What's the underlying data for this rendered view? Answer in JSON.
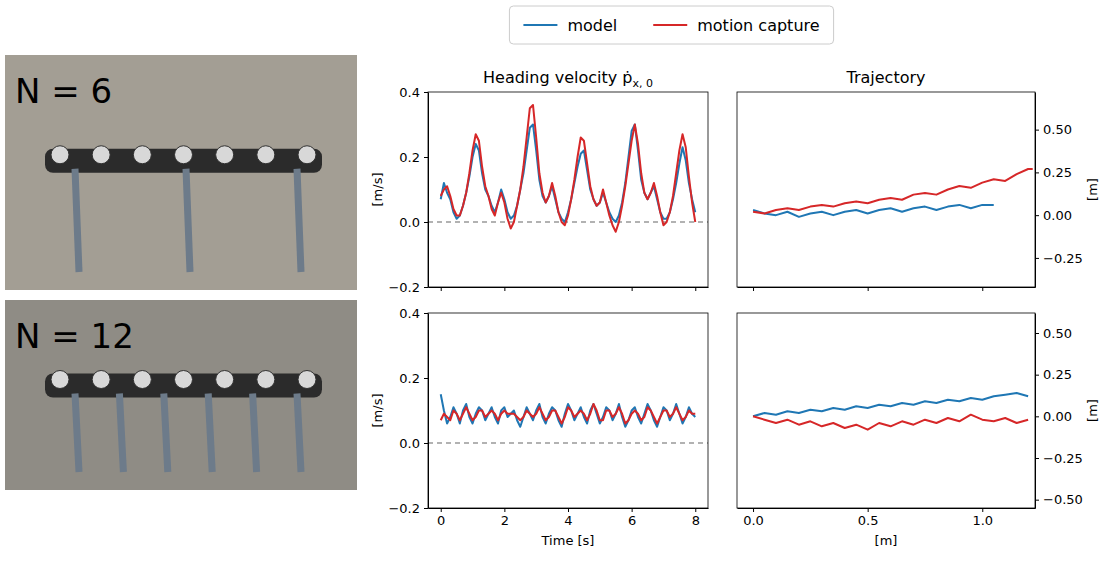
{
  "photos": [
    {
      "label": "N = 6"
    },
    {
      "label": "N = 12"
    }
  ],
  "chart_data": [
    {
      "type": "line",
      "title": "Heading velocity ṗ",
      "title_subscript": "x, 0",
      "y_label": "[m/s]",
      "legend": "upper center",
      "tick_labels": "y",
      "x": [
        0,
        0.1,
        0.2,
        0.3,
        0.4,
        0.5,
        0.6,
        0.7,
        0.8,
        0.9,
        1,
        1.1,
        1.2,
        1.3,
        1.4,
        1.5,
        1.6,
        1.7,
        1.8,
        1.9,
        2,
        2.1,
        2.2,
        2.3,
        2.4,
        2.5,
        2.6,
        2.7,
        2.8,
        2.9,
        3,
        3.1,
        3.2,
        3.3,
        3.4,
        3.5,
        3.6,
        3.7,
        3.8,
        3.9,
        4,
        4.1,
        4.2,
        4.3,
        4.4,
        4.5,
        4.6,
        4.7,
        4.8,
        4.9,
        5,
        5.1,
        5.2,
        5.3,
        5.4,
        5.5,
        5.6,
        5.7,
        5.8,
        5.9,
        6,
        6.1,
        6.2,
        6.3,
        6.4,
        6.5,
        6.6,
        6.7,
        6.8,
        6.9,
        7,
        7.1,
        7.2,
        7.3,
        7.4,
        7.5,
        7.6,
        7.7,
        7.8,
        7.9,
        8
      ],
      "xlim": [
        -0.4,
        8.4
      ],
      "xticks": [
        0,
        2,
        4,
        6,
        8
      ],
      "ylim": [
        -0.2,
        0.4
      ],
      "yticks": [
        {
          "value": -0.2,
          "label": "−0.2"
        },
        {
          "value": 0,
          "label": "0.0"
        },
        0.2,
        0.4
      ],
      "hlines": [
        0
      ],
      "series": [
        {
          "name": "model",
          "color": "#1f77b4",
          "values": [
            0.07,
            0.12,
            0.09,
            0.07,
            0.03,
            0.01,
            0.02,
            0.05,
            0.09,
            0.14,
            0.2,
            0.24,
            0.22,
            0.15,
            0.1,
            0.08,
            0.05,
            0.03,
            0.06,
            0.1,
            0.07,
            0.03,
            0.01,
            0.02,
            0.05,
            0.1,
            0.15,
            0.22,
            0.29,
            0.3,
            0.22,
            0.13,
            0.08,
            0.06,
            0.08,
            0.11,
            0.07,
            0.03,
            0.01,
            0.0,
            0.03,
            0.07,
            0.12,
            0.17,
            0.21,
            0.22,
            0.16,
            0.1,
            0.07,
            0.05,
            0.06,
            0.09,
            0.06,
            0.03,
            0.01,
            0.0,
            0.02,
            0.06,
            0.12,
            0.2,
            0.28,
            0.3,
            0.22,
            0.13,
            0.09,
            0.07,
            0.09,
            0.11,
            0.07,
            0.03,
            0.01,
            0.01,
            0.03,
            0.07,
            0.12,
            0.18,
            0.23,
            0.19,
            0.12,
            0.07,
            0.03
          ]
        },
        {
          "name": "motion capture",
          "color": "#d62728",
          "values": [
            0.08,
            0.1,
            0.11,
            0.08,
            0.04,
            0.02,
            0.02,
            0.05,
            0.09,
            0.15,
            0.22,
            0.27,
            0.25,
            0.17,
            0.11,
            0.08,
            0.04,
            0.02,
            0.06,
            0.09,
            0.06,
            0.01,
            -0.02,
            0.0,
            0.05,
            0.1,
            0.17,
            0.26,
            0.35,
            0.36,
            0.26,
            0.15,
            0.09,
            0.06,
            0.08,
            0.12,
            0.08,
            0.03,
            0.0,
            -0.01,
            0.02,
            0.07,
            0.13,
            0.2,
            0.26,
            0.25,
            0.18,
            0.11,
            0.07,
            0.05,
            0.06,
            0.1,
            0.06,
            0.02,
            -0.01,
            -0.03,
            0.0,
            0.05,
            0.11,
            0.18,
            0.25,
            0.3,
            0.24,
            0.15,
            0.09,
            0.07,
            0.09,
            0.12,
            0.08,
            0.03,
            -0.01,
            0.0,
            0.03,
            0.08,
            0.15,
            0.22,
            0.27,
            0.23,
            0.14,
            0.06,
            0.0
          ]
        }
      ]
    },
    {
      "type": "line",
      "title": "Trajectory",
      "y_label": "[m]",
      "tick_labels": "y",
      "xlim": [
        -0.07,
        1.23
      ],
      "xticks": [
        0,
        0.5,
        1
      ],
      "ylim": [
        -0.42,
        0.72
      ],
      "yticks": [
        {
          "value": -0.25,
          "label": "−0.25"
        },
        {
          "value": 0,
          "label": "0.00"
        },
        {
          "value": 0.25,
          "label": "0.25"
        },
        {
          "value": 0.5,
          "label": "0.50"
        }
      ],
      "series": [
        {
          "name": "model",
          "color": "#1f77b4",
          "x": [
            0,
            0.05,
            0.1,
            0.15,
            0.2,
            0.25,
            0.3,
            0.35,
            0.4,
            0.45,
            0.5,
            0.55,
            0.6,
            0.65,
            0.7,
            0.75,
            0.8,
            0.85,
            0.9,
            0.95,
            1,
            1.05
          ],
          "values": [
            0.03,
            0.01,
            0.0,
            0.02,
            -0.01,
            0.01,
            0.02,
            0.0,
            0.02,
            0.03,
            0.01,
            0.03,
            0.04,
            0.02,
            0.04,
            0.05,
            0.03,
            0.05,
            0.06,
            0.04,
            0.06,
            0.06
          ]
        },
        {
          "name": "motion capture",
          "color": "#d62728",
          "x": [
            0,
            0.05,
            0.1,
            0.15,
            0.2,
            0.25,
            0.3,
            0.35,
            0.4,
            0.45,
            0.5,
            0.55,
            0.6,
            0.65,
            0.7,
            0.75,
            0.8,
            0.85,
            0.9,
            0.95,
            1,
            1.05,
            1.1,
            1.15,
            1.2,
            1.22
          ],
          "values": [
            0.02,
            0.01,
            0.03,
            0.04,
            0.03,
            0.05,
            0.06,
            0.05,
            0.07,
            0.08,
            0.07,
            0.09,
            0.1,
            0.09,
            0.12,
            0.13,
            0.12,
            0.15,
            0.17,
            0.16,
            0.19,
            0.21,
            0.2,
            0.24,
            0.27,
            0.27
          ]
        }
      ]
    },
    {
      "type": "line",
      "x_label": "Time [s]",
      "y_label": "[m/s]",
      "x": [
        0,
        0.1,
        0.2,
        0.3,
        0.4,
        0.5,
        0.6,
        0.7,
        0.8,
        0.9,
        1,
        1.1,
        1.2,
        1.3,
        1.4,
        1.5,
        1.6,
        1.7,
        1.8,
        1.9,
        2,
        2.1,
        2.2,
        2.3,
        2.4,
        2.5,
        2.6,
        2.7,
        2.8,
        2.9,
        3,
        3.1,
        3.2,
        3.3,
        3.4,
        3.5,
        3.6,
        3.7,
        3.8,
        3.9,
        4,
        4.1,
        4.2,
        4.3,
        4.4,
        4.5,
        4.6,
        4.7,
        4.8,
        4.9,
        5,
        5.1,
        5.2,
        5.3,
        5.4,
        5.5,
        5.6,
        5.7,
        5.8,
        5.9,
        6,
        6.1,
        6.2,
        6.3,
        6.4,
        6.5,
        6.6,
        6.7,
        6.8,
        6.9,
        7,
        7.1,
        7.2,
        7.3,
        7.4,
        7.5,
        7.6,
        7.7,
        7.8,
        7.9,
        8
      ],
      "xlim": [
        -0.4,
        8.4
      ],
      "xticks": [
        0,
        2,
        4,
        6,
        8
      ],
      "ylim": [
        -0.2,
        0.4
      ],
      "yticks": [
        {
          "value": -0.2,
          "label": "−0.2"
        },
        {
          "value": 0,
          "label": "0.0"
        },
        0.2,
        0.4
      ],
      "hlines": [
        0
      ],
      "series": [
        {
          "name": "model",
          "color": "#1f77b4",
          "values": [
            0.15,
            0.1,
            0.06,
            0.08,
            0.11,
            0.09,
            0.06,
            0.1,
            0.12,
            0.08,
            0.06,
            0.09,
            0.11,
            0.1,
            0.07,
            0.09,
            0.11,
            0.08,
            0.06,
            0.1,
            0.11,
            0.08,
            0.09,
            0.1,
            0.07,
            0.05,
            0.08,
            0.11,
            0.09,
            0.07,
            0.1,
            0.12,
            0.08,
            0.06,
            0.09,
            0.11,
            0.1,
            0.07,
            0.05,
            0.09,
            0.12,
            0.1,
            0.07,
            0.09,
            0.11,
            0.08,
            0.06,
            0.1,
            0.12,
            0.09,
            0.06,
            0.08,
            0.11,
            0.1,
            0.07,
            0.09,
            0.12,
            0.08,
            0.05,
            0.07,
            0.1,
            0.11,
            0.08,
            0.06,
            0.09,
            0.12,
            0.1,
            0.07,
            0.05,
            0.08,
            0.11,
            0.1,
            0.07,
            0.09,
            0.12,
            0.09,
            0.06,
            0.08,
            0.11,
            0.09,
            0.08
          ]
        },
        {
          "name": "motion capture",
          "color": "#d62728",
          "values": [
            0.07,
            0.09,
            0.08,
            0.07,
            0.1,
            0.09,
            0.07,
            0.09,
            0.11,
            0.09,
            0.07,
            0.08,
            0.1,
            0.1,
            0.08,
            0.09,
            0.1,
            0.09,
            0.07,
            0.09,
            0.1,
            0.09,
            0.09,
            0.09,
            0.08,
            0.07,
            0.08,
            0.1,
            0.09,
            0.08,
            0.09,
            0.11,
            0.09,
            0.07,
            0.08,
            0.1,
            0.1,
            0.08,
            0.06,
            0.08,
            0.11,
            0.1,
            0.08,
            0.09,
            0.1,
            0.09,
            0.07,
            0.09,
            0.12,
            0.1,
            0.07,
            0.07,
            0.1,
            0.1,
            0.08,
            0.09,
            0.11,
            0.09,
            0.06,
            0.07,
            0.09,
            0.1,
            0.09,
            0.07,
            0.08,
            0.11,
            0.1,
            0.08,
            0.06,
            0.08,
            0.1,
            0.1,
            0.08,
            0.09,
            0.11,
            0.09,
            0.07,
            0.08,
            0.1,
            0.09,
            0.09
          ]
        }
      ]
    },
    {
      "type": "line",
      "x_label": "[m]",
      "y_label": "[m]",
      "xlim": [
        -0.07,
        1.23
      ],
      "xticks": [
        {
          "value": 0,
          "label": "0.0"
        },
        0.5,
        {
          "value": 1,
          "label": "1.0"
        }
      ],
      "ylim": [
        -0.55,
        0.62
      ],
      "yticks": [
        {
          "value": -0.5,
          "label": "−0.50"
        },
        {
          "value": -0.25,
          "label": "−0.25"
        },
        {
          "value": 0,
          "label": "0.00"
        },
        {
          "value": 0.25,
          "label": "0.25"
        },
        {
          "value": 0.5,
          "label": "0.50"
        }
      ],
      "series": [
        {
          "name": "model",
          "color": "#1f77b4",
          "x": [
            0,
            0.05,
            0.1,
            0.15,
            0.2,
            0.25,
            0.3,
            0.35,
            0.4,
            0.45,
            0.5,
            0.55,
            0.6,
            0.65,
            0.7,
            0.75,
            0.8,
            0.85,
            0.9,
            0.95,
            1,
            1.05,
            1.1,
            1.15,
            1.2
          ],
          "values": [
            0.0,
            0.02,
            0.01,
            0.03,
            0.02,
            0.04,
            0.03,
            0.05,
            0.04,
            0.06,
            0.05,
            0.07,
            0.06,
            0.08,
            0.07,
            0.09,
            0.08,
            0.1,
            0.09,
            0.11,
            0.1,
            0.12,
            0.13,
            0.14,
            0.12
          ]
        },
        {
          "name": "motion capture",
          "color": "#d62728",
          "x": [
            0,
            0.05,
            0.1,
            0.15,
            0.2,
            0.25,
            0.3,
            0.35,
            0.4,
            0.45,
            0.5,
            0.55,
            0.6,
            0.65,
            0.7,
            0.75,
            0.8,
            0.85,
            0.9,
            0.95,
            1,
            1.05,
            1.1,
            1.15,
            1.2
          ],
          "values": [
            0.0,
            -0.02,
            -0.04,
            -0.02,
            -0.05,
            -0.03,
            -0.06,
            -0.04,
            -0.07,
            -0.05,
            -0.08,
            -0.04,
            -0.06,
            -0.03,
            -0.05,
            -0.02,
            -0.04,
            -0.01,
            -0.03,
            0.01,
            -0.02,
            -0.03,
            -0.01,
            -0.04,
            -0.02
          ]
        }
      ]
    }
  ]
}
